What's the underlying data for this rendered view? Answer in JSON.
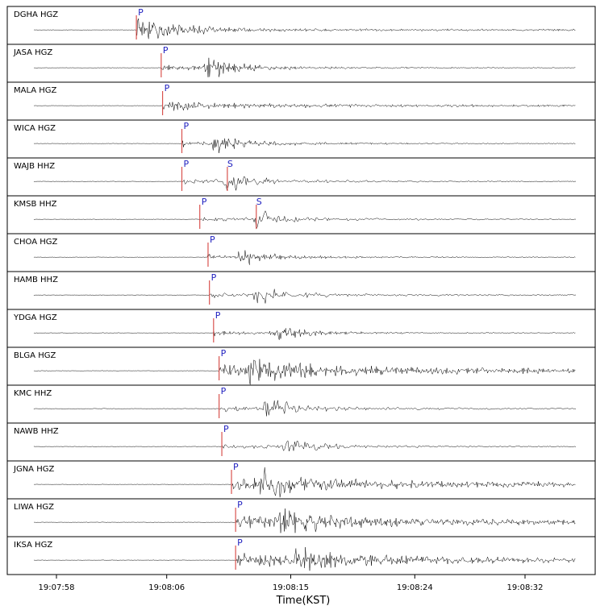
{
  "chart_data": {
    "type": "line",
    "title": "",
    "xlabel": "Time(KST)",
    "x_ticks": [
      "19:07:58",
      "19:08:06",
      "19:08:15",
      "19:08:24",
      "19:08:32"
    ],
    "x_range": [
      "19:07:56",
      "19:08:37"
    ],
    "phase_marker_color": "#d9534f",
    "phase_label_color": "#1f1fbf",
    "trace_color": "#000000",
    "stations": [
      {
        "name": "DGHA HGZ",
        "p_label": "P",
        "p_time": "19:08:03.8",
        "s_label": "",
        "s_time": null,
        "amplitude": 0.9,
        "envelope": "p-dominant",
        "texture": "dense"
      },
      {
        "name": "JASA HGZ",
        "p_label": "P",
        "p_time": "19:08:05.6",
        "s_label": "",
        "s_time": null,
        "amplitude": 0.8,
        "envelope": "delayed-burst",
        "texture": "dense"
      },
      {
        "name": "MALA HGZ",
        "p_label": "P",
        "p_time": "19:08:05.7",
        "s_label": "",
        "s_time": null,
        "amplitude": 0.6,
        "envelope": "sustained",
        "texture": "dense"
      },
      {
        "name": "WICA HGZ",
        "p_label": "P",
        "p_time": "19:08:07.1",
        "s_label": "",
        "s_time": null,
        "amplitude": 0.7,
        "envelope": "delayed-burst",
        "texture": "dense"
      },
      {
        "name": "WAJB HHZ",
        "p_label": "P",
        "p_time": "19:08:07.1",
        "s_label": "S",
        "s_time": "19:08:10.4",
        "amplitude": 0.75,
        "envelope": "s-burst",
        "texture": "smooth"
      },
      {
        "name": "KMSB HHZ",
        "p_label": "P",
        "p_time": "19:08:08.4",
        "s_label": "S",
        "s_time": "19:08:12.5",
        "amplitude": 0.7,
        "envelope": "s-burst",
        "texture": "smooth"
      },
      {
        "name": "CHOA HGZ",
        "p_label": "P",
        "p_time": "19:08:09.0",
        "s_label": "",
        "s_time": null,
        "amplitude": 0.6,
        "envelope": "delayed-burst",
        "texture": "dense"
      },
      {
        "name": "HAMB HHZ",
        "p_label": "P",
        "p_time": "19:08:09.1",
        "s_label": "",
        "s_time": null,
        "amplitude": 0.85,
        "envelope": "delayed-burst",
        "texture": "smooth"
      },
      {
        "name": "YDGA HGZ",
        "p_label": "P",
        "p_time": "19:08:09.4",
        "s_label": "",
        "s_time": null,
        "amplitude": 0.6,
        "envelope": "delayed-burst",
        "texture": "dense"
      },
      {
        "name": "BLGA HGZ",
        "p_label": "P",
        "p_time": "19:08:09.8",
        "s_label": "",
        "s_time": null,
        "amplitude": 0.9,
        "envelope": "sustained-burst",
        "texture": "dense"
      },
      {
        "name": "KMC HHZ",
        "p_label": "P",
        "p_time": "19:08:09.8",
        "s_label": "",
        "s_time": null,
        "amplitude": 0.9,
        "envelope": "delayed-burst",
        "texture": "smooth"
      },
      {
        "name": "NAWB HHZ",
        "p_label": "P",
        "p_time": "19:08:10.0",
        "s_label": "",
        "s_time": null,
        "amplitude": 0.8,
        "envelope": "delayed-burst",
        "texture": "smooth"
      },
      {
        "name": "JGNA HGZ",
        "p_label": "P",
        "p_time": "19:08:10.7",
        "s_label": "",
        "s_time": null,
        "amplitude": 0.9,
        "envelope": "sustained-burst",
        "texture": "dense"
      },
      {
        "name": "LIWA HGZ",
        "p_label": "P",
        "p_time": "19:08:11.0",
        "s_label": "",
        "s_time": null,
        "amplitude": 0.9,
        "envelope": "sustained-burst",
        "texture": "dense"
      },
      {
        "name": "IKSA HGZ",
        "p_label": "P",
        "p_time": "19:08:11.0",
        "s_label": "",
        "s_time": null,
        "amplitude": 0.9,
        "envelope": "sustained-burst",
        "texture": "dense"
      }
    ]
  }
}
